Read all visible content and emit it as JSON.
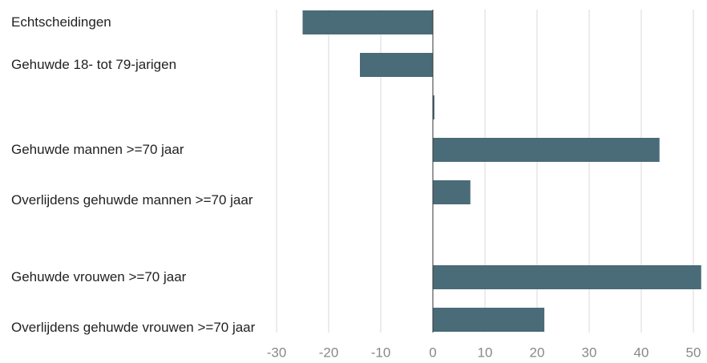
{
  "chart_data": {
    "type": "barh",
    "categories": [
      "Echtscheidingen",
      "Gehuwde 18- tot 79-jarigen",
      null,
      "Gehuwde mannen >=70 jaar",
      "Overlijdens gehuwde mannen >=70 jaar",
      null,
      "Gehuwde vrouwen >=70 jaar",
      "Overlijdens gehuwde vrouwen >=70 jaar"
    ],
    "values": [
      -25,
      -14,
      0.3,
      43.5,
      7.2,
      null,
      51.5,
      21.4
    ],
    "color": "#4a6b78",
    "xlim": [
      -30,
      52
    ],
    "xticks": [
      -30,
      -20,
      -10,
      0,
      10,
      20,
      30,
      40,
      50
    ],
    "grid": true
  }
}
